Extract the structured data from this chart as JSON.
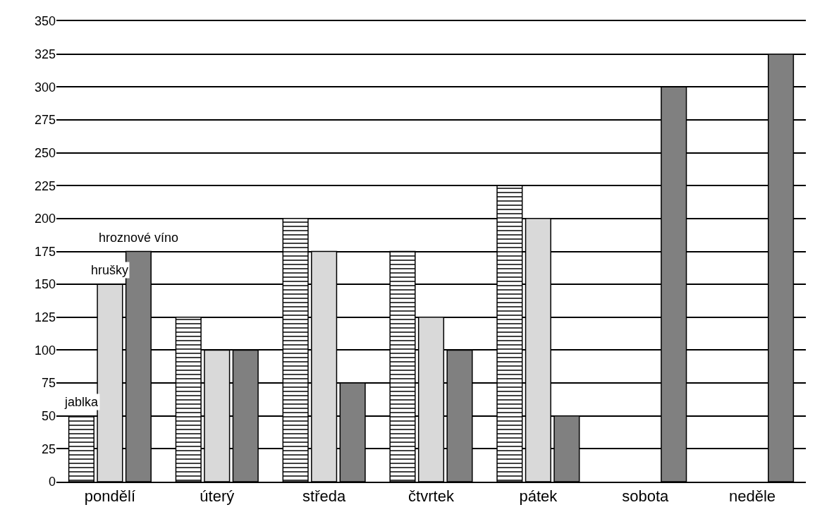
{
  "chart_data": {
    "type": "bar",
    "categories": [
      "pondělí",
      "úterý",
      "středa",
      "čtvrtek",
      "pátek",
      "sobota",
      "neděle"
    ],
    "series": [
      {
        "name": "jablka",
        "color": "#000000",
        "values": [
          50,
          125,
          200,
          175,
          225,
          null,
          null
        ]
      },
      {
        "name": "hrušky",
        "color": "#d9d9d9",
        "values": [
          150,
          100,
          175,
          125,
          200,
          null,
          null
        ]
      },
      {
        "name": "hroznové víno",
        "color": "#808080",
        "values": [
          175,
          100,
          75,
          100,
          50,
          300,
          325
        ]
      }
    ],
    "ylim": [
      0,
      350
    ],
    "yticks": [
      0,
      25,
      50,
      75,
      100,
      125,
      150,
      175,
      200,
      225,
      250,
      275,
      300,
      325,
      350
    ],
    "grid": "y",
    "legend": false
  }
}
